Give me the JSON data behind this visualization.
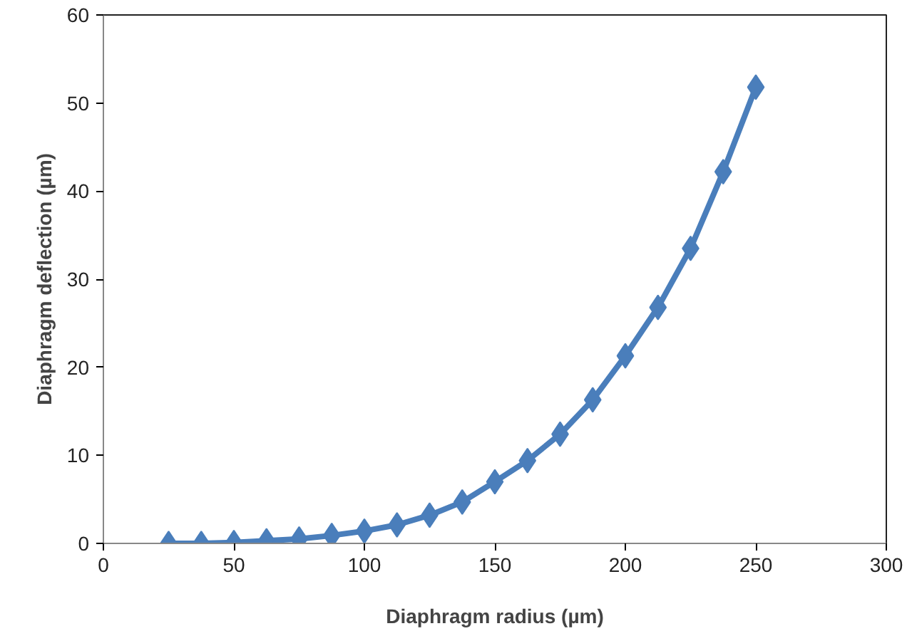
{
  "chart_data": {
    "type": "line",
    "xlabel": "Diaphragm radius (µm)",
    "ylabel": "Diaphragm deflection (µm)",
    "x": [
      25,
      37.5,
      50,
      62.5,
      75,
      87.5,
      100,
      112.5,
      125,
      137.5,
      150,
      162.5,
      175,
      187.5,
      200,
      212.5,
      225,
      237.5,
      250
    ],
    "series": [
      {
        "color": "#4a7ebb",
        "values": [
          0,
          0,
          0.1,
          0.3,
          0.5,
          0.9,
          1.4,
          2.1,
          3.2,
          4.7,
          7.0,
          9.4,
          12.4,
          16.3,
          21.3,
          26.8,
          33.5,
          42.2,
          51.8
        ]
      }
    ],
    "xlim": [
      0,
      300
    ],
    "xticks": [
      0,
      50,
      100,
      150,
      200,
      250,
      300
    ],
    "ylim": [
      0,
      60
    ],
    "yticks": [
      0,
      10,
      20,
      30,
      40,
      50,
      60
    ],
    "grid": false,
    "marker": "diamond",
    "line_style": "solid"
  }
}
